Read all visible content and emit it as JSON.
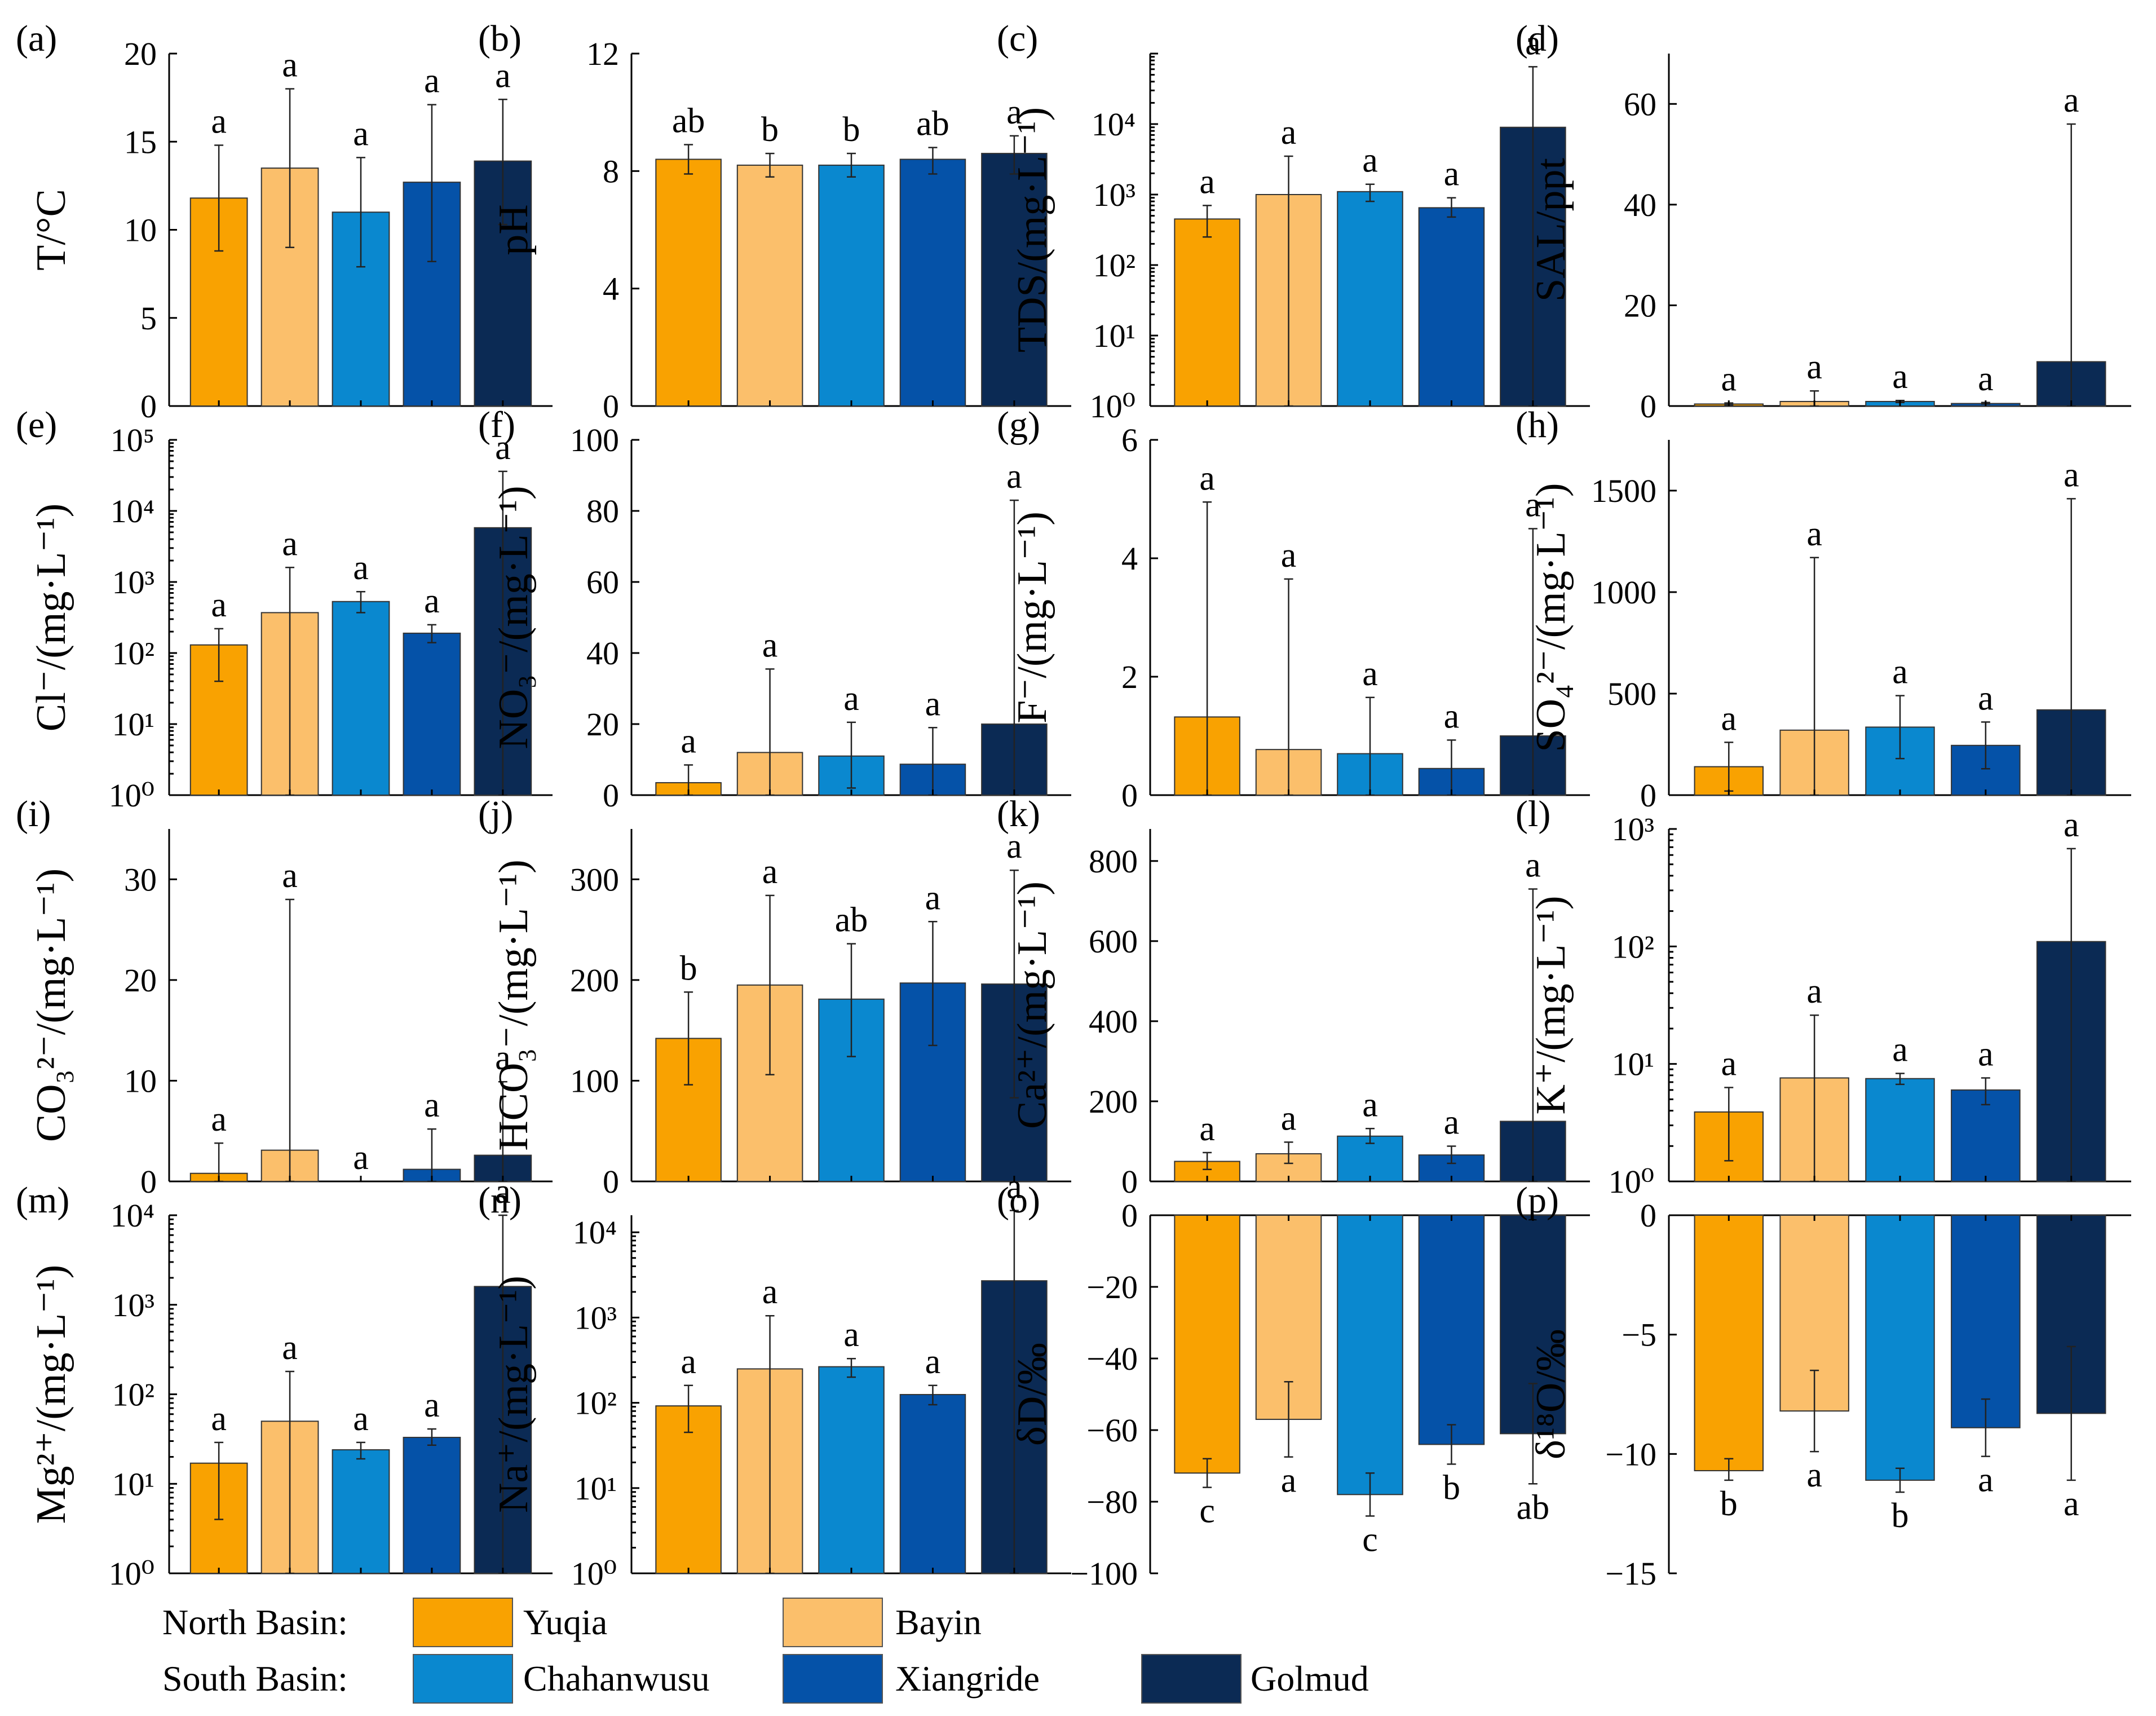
{
  "colors": {
    "Yuqia": "#F9A201",
    "Bayin": "#FBBF6B",
    "Chahanwusu": "#0A88CF",
    "Xiangride": "#0552A8",
    "Golmud": "#0B2A54"
  },
  "legend": {
    "north_label": "North Basin:",
    "south_label": "South Basin:",
    "north": [
      "Yuqia",
      "Bayin"
    ],
    "south": [
      "Chahanwusu",
      "Xiangride",
      "Golmud"
    ]
  },
  "chart_data": [
    {
      "panel": "(a)",
      "type": "bar",
      "ylabel": "T/°C",
      "scale": "linear",
      "ylim": [
        0,
        20
      ],
      "yticks": [
        0,
        5,
        10,
        15,
        20
      ],
      "categories": [
        "Yuqia",
        "Bayin",
        "Chahanwusu",
        "Xiangride",
        "Golmud"
      ],
      "values": [
        11.8,
        13.5,
        11.0,
        12.7,
        13.9
      ],
      "err_low": [
        8.8,
        9.0,
        7.9,
        8.2,
        10.3
      ],
      "err_high": [
        14.8,
        18.0,
        14.1,
        17.1,
        17.4
      ],
      "letters": [
        "a",
        "a",
        "a",
        "a",
        "a"
      ]
    },
    {
      "panel": "(b)",
      "type": "bar",
      "ylabel": "pH",
      "scale": "linear",
      "ylim": [
        0,
        12
      ],
      "yticks": [
        0,
        4,
        8,
        12
      ],
      "categories": [
        "Yuqia",
        "Bayin",
        "Chahanwusu",
        "Xiangride",
        "Golmud"
      ],
      "values": [
        8.4,
        8.2,
        8.2,
        8.4,
        8.6
      ],
      "err_low": [
        7.9,
        7.8,
        7.8,
        7.9,
        7.9
      ],
      "err_high": [
        8.9,
        8.6,
        8.6,
        8.8,
        9.2
      ],
      "letters": [
        "ab",
        "b",
        "b",
        "ab",
        "a"
      ]
    },
    {
      "panel": "(c)",
      "type": "bar",
      "ylabel": "TDS/(mg·L⁻¹)",
      "scale": "log",
      "ylim_exp": [
        0,
        5
      ],
      "yticks_exp": [
        0,
        1,
        2,
        3,
        4
      ],
      "categories": [
        "Yuqia",
        "Bayin",
        "Chahanwusu",
        "Xiangride",
        "Golmud"
      ],
      "values": [
        450,
        1000,
        1100,
        650,
        9000
      ],
      "err_low": [
        250,
        1,
        800,
        480,
        1
      ],
      "err_high": [
        700,
        3500,
        1400,
        900,
        65000
      ],
      "letters": [
        "a",
        "a",
        "a",
        "a",
        "a"
      ]
    },
    {
      "panel": "(d)",
      "type": "bar",
      "ylabel": "SAL/ppt",
      "scale": "linear",
      "ylim": [
        0,
        70
      ],
      "yticks": [
        0,
        20,
        40,
        60
      ],
      "categories": [
        "Yuqia",
        "Bayin",
        "Chahanwusu",
        "Xiangride",
        "Golmud"
      ],
      "values": [
        0.4,
        0.9,
        0.9,
        0.5,
        8.8
      ],
      "err_low": [
        0.2,
        0,
        0.7,
        0.4,
        0
      ],
      "err_high": [
        0.6,
        3.0,
        1.1,
        0.7,
        56
      ],
      "letters": [
        "a",
        "a",
        "a",
        "a",
        "a"
      ]
    },
    {
      "panel": "(e)",
      "type": "bar",
      "ylabel": "Cl⁻/(mg·L⁻¹)",
      "scale": "log",
      "ylim_exp": [
        0,
        5
      ],
      "yticks_exp": [
        0,
        1,
        2,
        3,
        4,
        5
      ],
      "categories": [
        "Yuqia",
        "Bayin",
        "Chahanwusu",
        "Xiangride",
        "Golmud"
      ],
      "values": [
        130,
        370,
        530,
        190,
        5800
      ],
      "err_low": [
        40,
        1,
        370,
        140,
        1
      ],
      "err_high": [
        220,
        1600,
        730,
        250,
        36000
      ],
      "letters": [
        "a",
        "a",
        "a",
        "a",
        "a"
      ]
    },
    {
      "panel": "(f)",
      "type": "bar",
      "ylabel": "NO₃⁻/(mg·L⁻¹)",
      "scale": "linear",
      "ylim": [
        0,
        100
      ],
      "yticks": [
        0,
        20,
        40,
        60,
        80,
        100
      ],
      "categories": [
        "Yuqia",
        "Bayin",
        "Chahanwusu",
        "Xiangride",
        "Golmud"
      ],
      "values": [
        3.5,
        12,
        11,
        8.7,
        20
      ],
      "err_low": [
        0,
        0,
        2,
        0,
        0
      ],
      "err_high": [
        8.5,
        35.5,
        20.5,
        19,
        83
      ],
      "letters": [
        "a",
        "a",
        "a",
        "a",
        "a"
      ]
    },
    {
      "panel": "(g)",
      "type": "bar",
      "ylabel": "F⁻/(mg·L⁻¹)",
      "scale": "linear",
      "ylim": [
        0,
        6
      ],
      "yticks": [
        0,
        2,
        4,
        6
      ],
      "categories": [
        "Yuqia",
        "Bayin",
        "Chahanwusu",
        "Xiangride",
        "Golmud"
      ],
      "values": [
        1.32,
        0.77,
        0.7,
        0.45,
        1.0
      ],
      "err_low": [
        0,
        0,
        0,
        0,
        0
      ],
      "err_high": [
        4.95,
        3.65,
        1.65,
        0.93,
        4.5
      ],
      "letters": [
        "a",
        "a",
        "a",
        "a",
        "a"
      ]
    },
    {
      "panel": "(h)",
      "type": "bar",
      "ylabel": "SO₄²⁻/(mg·L⁻¹)",
      "scale": "linear",
      "ylim": [
        0,
        1750
      ],
      "yticks": [
        0,
        500,
        1000,
        1500
      ],
      "categories": [
        "Yuqia",
        "Bayin",
        "Chahanwusu",
        "Xiangride",
        "Golmud"
      ],
      "values": [
        140,
        320,
        335,
        245,
        420
      ],
      "err_low": [
        20,
        0,
        180,
        130,
        0
      ],
      "err_high": [
        260,
        1170,
        490,
        360,
        1460
      ],
      "letters": [
        "a",
        "a",
        "a",
        "a",
        "a"
      ]
    },
    {
      "panel": "(i)",
      "type": "bar",
      "ylabel": "CO₃²⁻/(mg·L⁻¹)",
      "scale": "linear",
      "ylim": [
        0,
        35
      ],
      "yticks": [
        0,
        10,
        20,
        30
      ],
      "categories": [
        "Yuqia",
        "Bayin",
        "Chahanwusu",
        "Xiangride",
        "Golmud"
      ],
      "values": [
        0.8,
        3.1,
        0,
        1.2,
        2.6
      ],
      "err_low": [
        0,
        0,
        0,
        0,
        0
      ],
      "err_high": [
        3.8,
        28.0,
        0,
        5.2,
        9.9
      ],
      "letters": [
        "a",
        "a",
        "a",
        "a",
        "a"
      ]
    },
    {
      "panel": "(j)",
      "type": "bar",
      "ylabel": "HCO₃⁻/(mg·L⁻¹)",
      "scale": "linear",
      "ylim": [
        0,
        350
      ],
      "yticks": [
        0,
        100,
        200,
        300
      ],
      "categories": [
        "Yuqia",
        "Bayin",
        "Chahanwusu",
        "Xiangride",
        "Golmud"
      ],
      "values": [
        142,
        195,
        181,
        197,
        196
      ],
      "err_low": [
        96,
        106,
        124,
        135,
        83
      ],
      "err_high": [
        188,
        284,
        236,
        258,
        309
      ],
      "letters": [
        "b",
        "a",
        "ab",
        "a",
        "a"
      ]
    },
    {
      "panel": "(k)",
      "type": "bar",
      "ylabel": "Ca²⁺/(mg·L⁻¹)",
      "scale": "linear",
      "ylim": [
        0,
        880
      ],
      "yticks": [
        0,
        200,
        400,
        600,
        800
      ],
      "categories": [
        "Yuqia",
        "Bayin",
        "Chahanwusu",
        "Xiangride",
        "Golmud"
      ],
      "values": [
        50,
        69,
        113,
        66,
        150
      ],
      "err_low": [
        30,
        45,
        95,
        45,
        0
      ],
      "err_high": [
        72,
        98,
        132,
        88,
        730
      ],
      "letters": [
        "a",
        "a",
        "a",
        "a",
        "a"
      ]
    },
    {
      "panel": "(l)",
      "type": "bar",
      "ylabel": "K⁺/(mg·L⁻¹)",
      "scale": "log",
      "ylim_exp": [
        0,
        3
      ],
      "yticks_exp": [
        0,
        1,
        2,
        3
      ],
      "categories": [
        "Yuqia",
        "Bayin",
        "Chahanwusu",
        "Xiangride",
        "Golmud"
      ],
      "values": [
        3.9,
        7.6,
        7.5,
        6.0,
        110
      ],
      "err_low": [
        1.5,
        1,
        6.7,
        4.5,
        1
      ],
      "err_high": [
        6.3,
        26,
        8.3,
        7.6,
        680
      ],
      "letters": [
        "a",
        "a",
        "a",
        "a",
        "a"
      ]
    },
    {
      "panel": "(m)",
      "type": "bar",
      "ylabel": "Mg²⁺/(mg·L⁻¹)",
      "scale": "log",
      "ylim_exp": [
        0,
        4
      ],
      "yticks_exp": [
        0,
        1,
        2,
        3,
        4
      ],
      "categories": [
        "Yuqia",
        "Bayin",
        "Chahanwusu",
        "Xiangride",
        "Golmud"
      ],
      "values": [
        17,
        50,
        24,
        33,
        1600
      ],
      "err_low": [
        4,
        1,
        19,
        27,
        1
      ],
      "err_high": [
        29,
        180,
        29,
        41,
        10000
      ],
      "letters": [
        "a",
        "a",
        "a",
        "a",
        "a"
      ]
    },
    {
      "panel": "(n)",
      "type": "bar",
      "ylabel": "Na⁺/(mg·L⁻¹)",
      "scale": "log",
      "ylim_exp": [
        0,
        4.2
      ],
      "yticks_exp": [
        0,
        1,
        2,
        3,
        4
      ],
      "categories": [
        "Yuqia",
        "Bayin",
        "Chahanwusu",
        "Xiangride",
        "Golmud"
      ],
      "values": [
        92,
        250,
        265,
        125,
        2700
      ],
      "err_low": [
        45,
        1,
        200,
        95,
        1
      ],
      "err_high": [
        160,
        1050,
        330,
        160,
        18000
      ],
      "letters": [
        "a",
        "a",
        "a",
        "a",
        "a"
      ]
    },
    {
      "panel": "(o)",
      "type": "bar",
      "ylabel": "δD/‰",
      "scale": "linear",
      "ylim": [
        -100,
        0
      ],
      "yticks": [
        -100,
        -80,
        -60,
        -40,
        -20,
        0
      ],
      "categories": [
        "Yuqia",
        "Bayin",
        "Chahanwusu",
        "Xiangride",
        "Golmud"
      ],
      "values": [
        -72,
        -57,
        -78,
        -64,
        -61
      ],
      "err_low": [
        -76,
        -67.5,
        -84,
        -69.5,
        -75
      ],
      "err_high": [
        -68,
        -46.5,
        -72,
        -58.5,
        -47
      ],
      "letters": [
        "c",
        "a",
        "c",
        "b",
        "ab"
      ]
    },
    {
      "panel": "(p)",
      "type": "bar",
      "ylabel": "δ¹⁸O/‰",
      "scale": "linear",
      "ylim": [
        -15,
        0
      ],
      "yticks": [
        -15,
        -10,
        -5,
        0
      ],
      "categories": [
        "Yuqia",
        "Bayin",
        "Chahanwusu",
        "Xiangride",
        "Golmud"
      ],
      "values": [
        -10.7,
        -8.2,
        -11.1,
        -8.9,
        -8.3
      ],
      "err_low": [
        -11.1,
        -9.9,
        -11.6,
        -10.1,
        -11.1
      ],
      "err_high": [
        -10.2,
        -6.5,
        -10.6,
        -7.7,
        -5.5
      ],
      "letters": [
        "b",
        "a",
        "b",
        "a",
        "a"
      ]
    }
  ]
}
